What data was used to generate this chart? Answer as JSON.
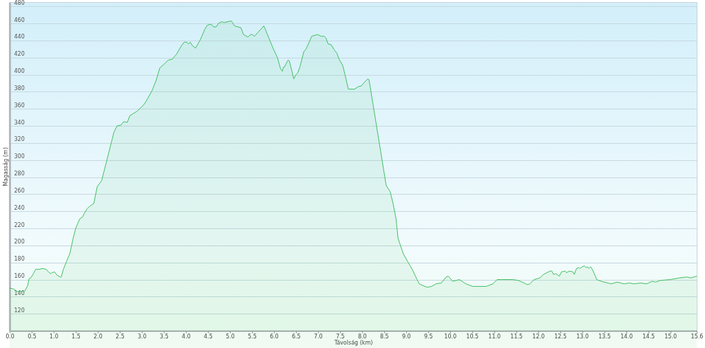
{
  "chart_data": {
    "type": "area",
    "xlabel": "Távolság (km)",
    "ylabel": "Magasság (m)",
    "color": "#3fbf5f",
    "x": [
      0.0,
      0.09,
      0.17,
      0.3,
      0.35,
      0.41,
      0.44,
      0.48,
      0.54,
      0.59,
      0.67,
      0.75,
      0.83,
      0.88,
      0.93,
      0.96,
      1.02,
      1.08,
      1.15,
      1.17,
      1.22,
      1.29,
      1.37,
      1.44,
      1.5,
      1.59,
      1.65,
      1.7,
      1.76,
      1.82,
      1.88,
      1.91,
      1.99,
      2.09,
      2.37,
      2.44,
      2.53,
      2.59,
      2.67,
      2.73,
      2.89,
      3.05,
      3.1,
      3.24,
      3.33,
      3.41,
      3.48,
      3.6,
      3.69,
      3.79,
      3.89,
      3.96,
      4.02,
      4.06,
      4.1,
      4.15,
      4.22,
      4.33,
      4.43,
      4.49,
      4.58,
      4.63,
      4.69,
      4.74,
      4.82,
      4.87,
      5.03,
      5.11,
      5.25,
      5.31,
      5.41,
      5.47,
      5.51,
      5.56,
      5.77,
      5.79,
      5.98,
      6.08,
      6.15,
      6.19,
      6.22,
      6.24,
      6.32,
      6.35,
      6.4,
      6.45,
      6.5,
      6.54,
      6.59,
      6.68,
      6.73,
      6.86,
      6.99,
      7.07,
      7.14,
      7.18,
      7.23,
      7.3,
      7.37,
      7.43,
      7.48,
      7.56,
      7.61,
      7.69,
      7.83,
      7.92,
      7.99,
      8.07,
      8.13,
      8.16,
      8.55,
      8.64,
      8.71,
      8.77,
      8.82,
      8.86,
      8.94,
      9.05,
      9.15,
      9.25,
      9.3,
      9.38,
      9.48,
      9.58,
      9.68,
      9.8,
      9.91,
      9.96,
      10.06,
      10.21,
      10.36,
      10.51,
      10.82,
      10.97,
      11.07,
      11.17,
      11.27,
      11.42,
      11.55,
      11.76,
      11.81,
      11.91,
      12.04,
      12.12,
      12.27,
      12.31,
      12.35,
      12.4,
      12.48,
      12.53,
      12.61,
      12.64,
      12.71,
      12.79,
      12.82,
      12.87,
      12.92,
      12.95,
      13.0,
      13.05,
      13.09,
      13.12,
      13.15,
      13.19,
      13.23,
      13.33,
      13.43,
      13.66,
      13.79,
      13.95,
      14.08,
      14.17,
      14.33,
      14.46,
      14.59,
      14.67,
      14.77,
      15.0,
      15.21,
      15.37,
      15.47,
      15.6
    ],
    "values": [
      150,
      149,
      146,
      146,
      147,
      153,
      161,
      162,
      167,
      172,
      172,
      173,
      172,
      169,
      167,
      168,
      169,
      165,
      163,
      163,
      172,
      181,
      191,
      208,
      220,
      231,
      233,
      238,
      243,
      246,
      248,
      249,
      269,
      276,
      333,
      340,
      341,
      345,
      344,
      352,
      357,
      365,
      369,
      382,
      394,
      408,
      411,
      417,
      418,
      424,
      433,
      438,
      438,
      436,
      438,
      434,
      431,
      441,
      453,
      458,
      459,
      456,
      456,
      460,
      462,
      461,
      463,
      457,
      455,
      447,
      444,
      447,
      447,
      445,
      457,
      455,
      431,
      420,
      407,
      404,
      409,
      409,
      417,
      416,
      406,
      395,
      400,
      402,
      409,
      427,
      430,
      445,
      447,
      445,
      445,
      443,
      436,
      435,
      429,
      425,
      418,
      411,
      401,
      383,
      383,
      386,
      387,
      392,
      395,
      394,
      270,
      263,
      248,
      232,
      208,
      202,
      190,
      180,
      171,
      160,
      155,
      153,
      151,
      152,
      155,
      156,
      163,
      164,
      158,
      160,
      155,
      152,
      152,
      155,
      160,
      160,
      160,
      160,
      159,
      154,
      155,
      160,
      162,
      166,
      170,
      170,
      166,
      167,
      164,
      169,
      170,
      168,
      170,
      169,
      166,
      173,
      174,
      173,
      175,
      176,
      174,
      175,
      173,
      175,
      172,
      160,
      158,
      155,
      157,
      155,
      156,
      155,
      156,
      155,
      158,
      157,
      159,
      160,
      162,
      163,
      162,
      164
    ],
    "xlim": [
      0,
      15.6
    ],
    "ylim": [
      100,
      485
    ],
    "xticks": [
      {
        "value": 0,
        "label": "0.0"
      },
      0.5,
      {
        "value": 1,
        "label": "1.0"
      },
      1.5,
      {
        "value": 2,
        "label": "2.0"
      },
      2.5,
      {
        "value": 3,
        "label": "3.0"
      },
      3.5,
      {
        "value": 4,
        "label": "4.0"
      },
      4.5,
      {
        "value": 5,
        "label": "5.0"
      },
      5.5,
      {
        "value": 6,
        "label": "6.0"
      },
      6.5,
      {
        "value": 7,
        "label": "7.0"
      },
      7.5,
      {
        "value": 8,
        "label": "8.0"
      },
      8.5,
      {
        "value": 9,
        "label": "9.0"
      },
      9.5,
      {
        "value": 10,
        "label": "10.0"
      },
      10.5,
      {
        "value": 11,
        "label": "11.0"
      },
      11.5,
      {
        "value": 12,
        "label": "12.0"
      },
      12.5,
      {
        "value": 13,
        "label": "13.0"
      },
      13.5,
      {
        "value": 14,
        "label": "14.0"
      },
      14.5,
      {
        "value": 15,
        "label": "15.0"
      },
      15.6
    ],
    "yticks": [
      120,
      140,
      160,
      180,
      200,
      220,
      240,
      260,
      280,
      300,
      320,
      340,
      360,
      380,
      400,
      420,
      440,
      460,
      480
    ],
    "grid": "y"
  }
}
